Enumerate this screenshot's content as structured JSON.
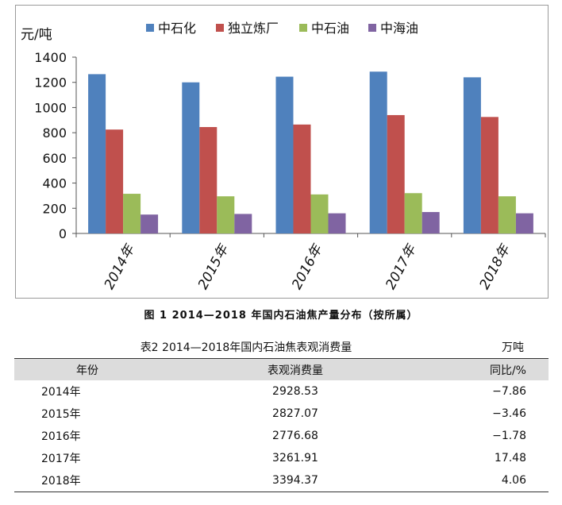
{
  "chart_data": {
    "type": "bar",
    "ylabel": "元/吨",
    "ylim": [
      0,
      1400
    ],
    "yticks": [
      0,
      200,
      400,
      600,
      800,
      1000,
      1200,
      1400
    ],
    "categories": [
      "2014年",
      "2015年",
      "2016年",
      "2017年",
      "2018年"
    ],
    "legend_position": "top",
    "series": [
      {
        "name": "中石化",
        "color": "#4f81bd",
        "values": [
          1265,
          1200,
          1245,
          1285,
          1240
        ]
      },
      {
        "name": "独立炼厂",
        "color": "#c0504d",
        "values": [
          825,
          845,
          865,
          940,
          925
        ]
      },
      {
        "name": "中石油",
        "color": "#9bbb59",
        "values": [
          315,
          295,
          310,
          320,
          295
        ]
      },
      {
        "name": "中海油",
        "color": "#8064a2",
        "values": [
          150,
          155,
          160,
          170,
          160
        ]
      }
    ]
  },
  "figure_caption": "图 1  2014—2018 年国内石油焦产量分布（按所属）",
  "table": {
    "title": "表2  2014—2018年国内石油焦表观消费量",
    "unit": "万吨",
    "headers": [
      "年份",
      "表观消费量",
      "同比/%"
    ],
    "rows": [
      {
        "year": "2014年",
        "value": "2928.53",
        "yoy": "−7.86"
      },
      {
        "year": "2015年",
        "value": "2827.07",
        "yoy": "−3.46"
      },
      {
        "year": "2016年",
        "value": "2776.68",
        "yoy": "−1.78"
      },
      {
        "year": "2017年",
        "value": "3261.91",
        "yoy": "17.48"
      },
      {
        "year": "2018年",
        "value": "3394.37",
        "yoy": "4.06"
      }
    ]
  }
}
